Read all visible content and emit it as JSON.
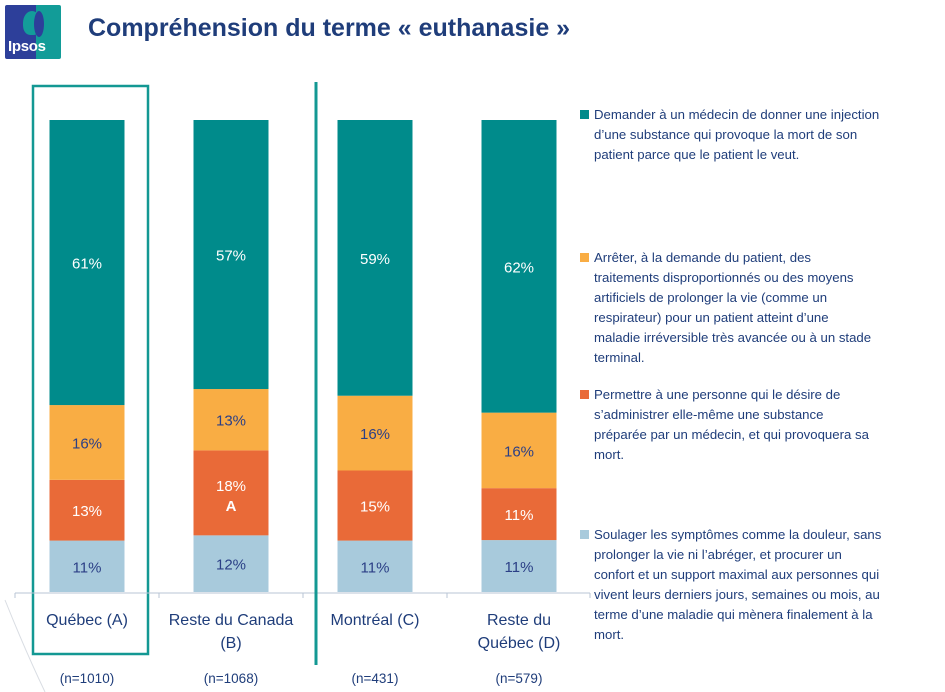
{
  "header": {
    "logo_text": "Ipsos",
    "title": "Compréhension du terme « euthanasie »"
  },
  "chart_data": {
    "type": "bar",
    "stacked": true,
    "title": "Compréhension du terme « euthanasie »",
    "xlabel": "",
    "ylabel": "",
    "ylim": [
      0,
      100
    ],
    "grid": false,
    "legend_position": "right",
    "categories": [
      "Québec (A)",
      "Reste du Canada (B)",
      "Montréal (C)",
      "Reste du Québec (D)"
    ],
    "category_lines": [
      [
        "Québec (A)"
      ],
      [
        "Reste du Canada",
        "(B)"
      ],
      [
        "Montréal (C)"
      ],
      [
        "Reste du",
        "Québec (D)"
      ]
    ],
    "sample_sizes": [
      "(n=1010)",
      "(n=1068)",
      "(n=431)",
      "(n=579)"
    ],
    "highlighted_category": "Québec (A)",
    "separator_after_category": "Reste du Canada (B)",
    "series": [
      {
        "name": "Soulager les symptômes comme la douleur, sans prolonger la vie ni l’abréger, et procurer un confort et un support maximal aux personnes qui vivent leurs derniers jours, semaines ou mois, au terme d’une maladie qui mènera finalement à la mort.",
        "color": "#a8cadc",
        "label_color": "#2b3f86",
        "values": [
          11,
          12,
          11,
          11
        ],
        "significance": [
          "",
          "",
          "",
          ""
        ]
      },
      {
        "name": "Permettre à une personne qui le désire de s’administrer elle-même une substance préparée par un médecin, et qui provoquera sa mort.",
        "color": "#e96a38",
        "label_color": "#ffffff",
        "values": [
          13,
          18,
          15,
          11
        ],
        "significance": [
          "",
          "A",
          "",
          ""
        ]
      },
      {
        "name": "Arrêter, à la demande du patient, des traitements disproportionnés ou des moyens artificiels de prolonger la vie (comme un respirateur) pour un patient atteint d’une maladie irréversible très avancée ou à un stade terminal.",
        "color": "#f9ad44",
        "label_color": "#2b3f86",
        "values": [
          16,
          13,
          16,
          16
        ],
        "significance": [
          "",
          "",
          "",
          ""
        ]
      },
      {
        "name": "Demander à un médecin de donner une injection d’une substance qui provoque la mort de son patient parce que le patient le veut.",
        "color": "#008b8b",
        "label_color": "#ffffff",
        "values": [
          61,
          57,
          59,
          62
        ],
        "significance": [
          "",
          "",
          "",
          ""
        ]
      }
    ]
  },
  "legend": {
    "items": [
      {
        "color": "#008b8b",
        "lines": [
          "Demander à un médecin de donner une injection",
          "d’une substance qui provoque la mort de son",
          "patient parce que le patient le veut."
        ]
      },
      {
        "color": "#f9ad44",
        "lines": [
          "Arrêter, à la demande du patient, des",
          "traitements disproportionnés ou des moyens",
          "artificiels de prolonger la vie (comme un",
          "respirateur) pour un patient atteint d’une",
          "maladie irréversible très avancée ou à un stade",
          "terminal."
        ]
      },
      {
        "color": "#e96a38",
        "lines": [
          "Permettre à une personne qui le désire de",
          "s’administrer elle-même une substance",
          "préparée par un médecin, et qui provoquera sa",
          "mort."
        ]
      },
      {
        "color": "#a8cadc",
        "lines": [
          "Soulager les symptômes comme la douleur, sans",
          "prolonger la vie ni l’abréger, et procurer un",
          "confort et un support maximal aux personnes qui",
          "vivent leurs derniers jours, semaines ou mois, au",
          "terme d’une maladie qui mènera finalement à la",
          "mort."
        ]
      }
    ]
  },
  "colors": {
    "title": "#1f3d7a",
    "text": "#1f3d7a",
    "highlight_frame": "#139893",
    "axis": "#b8c4d4"
  }
}
